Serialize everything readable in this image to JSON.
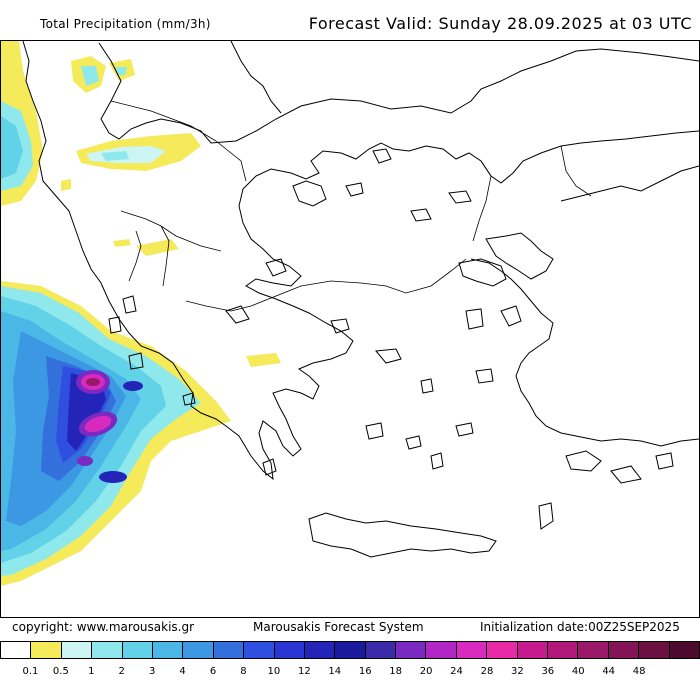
{
  "header": {
    "title": "Total Precipitation (mm/3h)",
    "forecast": "Forecast Valid:  Sunday 28.09.2025 at 03 UTC"
  },
  "footer": {
    "copyright": "copyright: www.marousakis.gr",
    "system": "Marousakis Forecast System",
    "init": "Initialization date:00Z25SEP2025"
  },
  "legend": {
    "colors": [
      "#ffffff",
      "#f5ea5a",
      "#cdf5f3",
      "#8fe9ec",
      "#62d2e8",
      "#4ab7e6",
      "#3c98e2",
      "#3470dc",
      "#2e4fe0",
      "#2a35d4",
      "#2424b8",
      "#1a1a9c",
      "#3c2aa8",
      "#7a2ac0",
      "#b226c8",
      "#d82abf",
      "#e82aa8",
      "#c71a8e",
      "#b1187a",
      "#9a1868",
      "#851456",
      "#6b1040",
      "#4e0a2e"
    ],
    "labels": [
      "0.1",
      "0.5",
      "1",
      "2",
      "3",
      "4",
      "6",
      "8",
      "10",
      "12",
      "14",
      "16",
      "18",
      "20",
      "24",
      "28",
      "32",
      "36",
      "40",
      "44",
      "48"
    ]
  }
}
